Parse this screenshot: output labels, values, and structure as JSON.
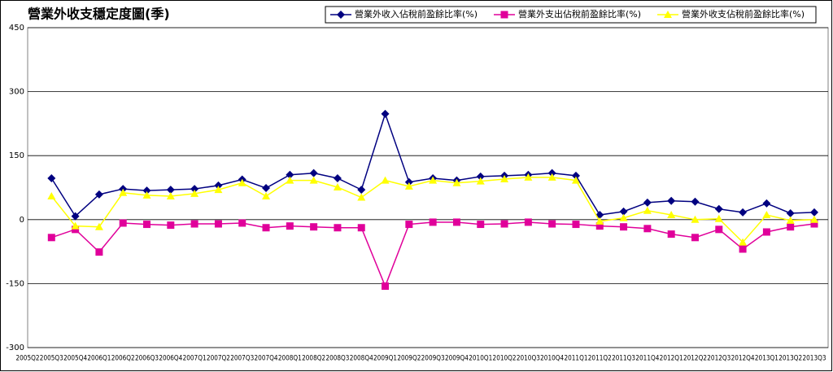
{
  "chart_data": {
    "type": "line",
    "title": "營業外收支穩定度圖(季)",
    "categories": [
      "2005Q2",
      "2005Q3",
      "2005Q4",
      "2006Q1",
      "2006Q2",
      "2006Q3",
      "2006Q4",
      "2007Q1",
      "2007Q2",
      "2007Q3",
      "2007Q4",
      "2008Q1",
      "2008Q2",
      "2008Q3",
      "2008Q4",
      "2009Q1",
      "2009Q2",
      "2009Q3",
      "2009Q4",
      "2010Q1",
      "2010Q2",
      "2010Q3",
      "2010Q4",
      "2011Q1",
      "2011Q2",
      "2011Q3",
      "2011Q4",
      "2012Q1",
      "2012Q2",
      "2012Q3",
      "2012Q4",
      "2013Q1",
      "2013Q2",
      "2013Q3"
    ],
    "series": [
      {
        "name": "營業外收入佔稅前盈餘比率(%)",
        "color": "#000080",
        "marker": "diamond",
        "values": [
          null,
          97,
          8,
          59,
          72,
          68,
          70,
          72,
          80,
          94,
          74,
          105,
          109,
          97,
          70,
          248,
          88,
          97,
          92,
          101,
          103,
          105,
          109,
          103,
          11,
          19,
          40,
          44,
          42,
          25,
          17,
          38,
          15,
          17
        ]
      },
      {
        "name": "營業外支出佔稅前盈餘比率(%)",
        "color": "#e0009a",
        "marker": "square",
        "values": [
          null,
          -42,
          -23,
          -76,
          -8,
          -11,
          -13,
          -10,
          -10,
          -8,
          -19,
          -15,
          -17,
          -19,
          -19,
          -156,
          -11,
          -6,
          -6,
          -11,
          -10,
          -6,
          -10,
          -11,
          -15,
          -17,
          -21,
          -34,
          -42,
          -23,
          -69,
          -29,
          -17,
          -10
        ]
      },
      {
        "name": "營業外收支佔稅前盈餘比率(%)",
        "color": "#ffff00",
        "marker": "triangle",
        "values": [
          null,
          55,
          -15,
          -17,
          63,
          57,
          55,
          61,
          70,
          86,
          55,
          92,
          92,
          76,
          52,
          92,
          78,
          92,
          86,
          90,
          95,
          99,
          99,
          92,
          -4,
          4,
          21,
          11,
          0,
          2,
          -53,
          11,
          -2,
          0
        ]
      }
    ],
    "ylim": [
      -300,
      450
    ],
    "yticks": [
      -300,
      -150,
      0,
      150,
      300,
      450
    ],
    "grid": true,
    "legend": "top-right"
  }
}
